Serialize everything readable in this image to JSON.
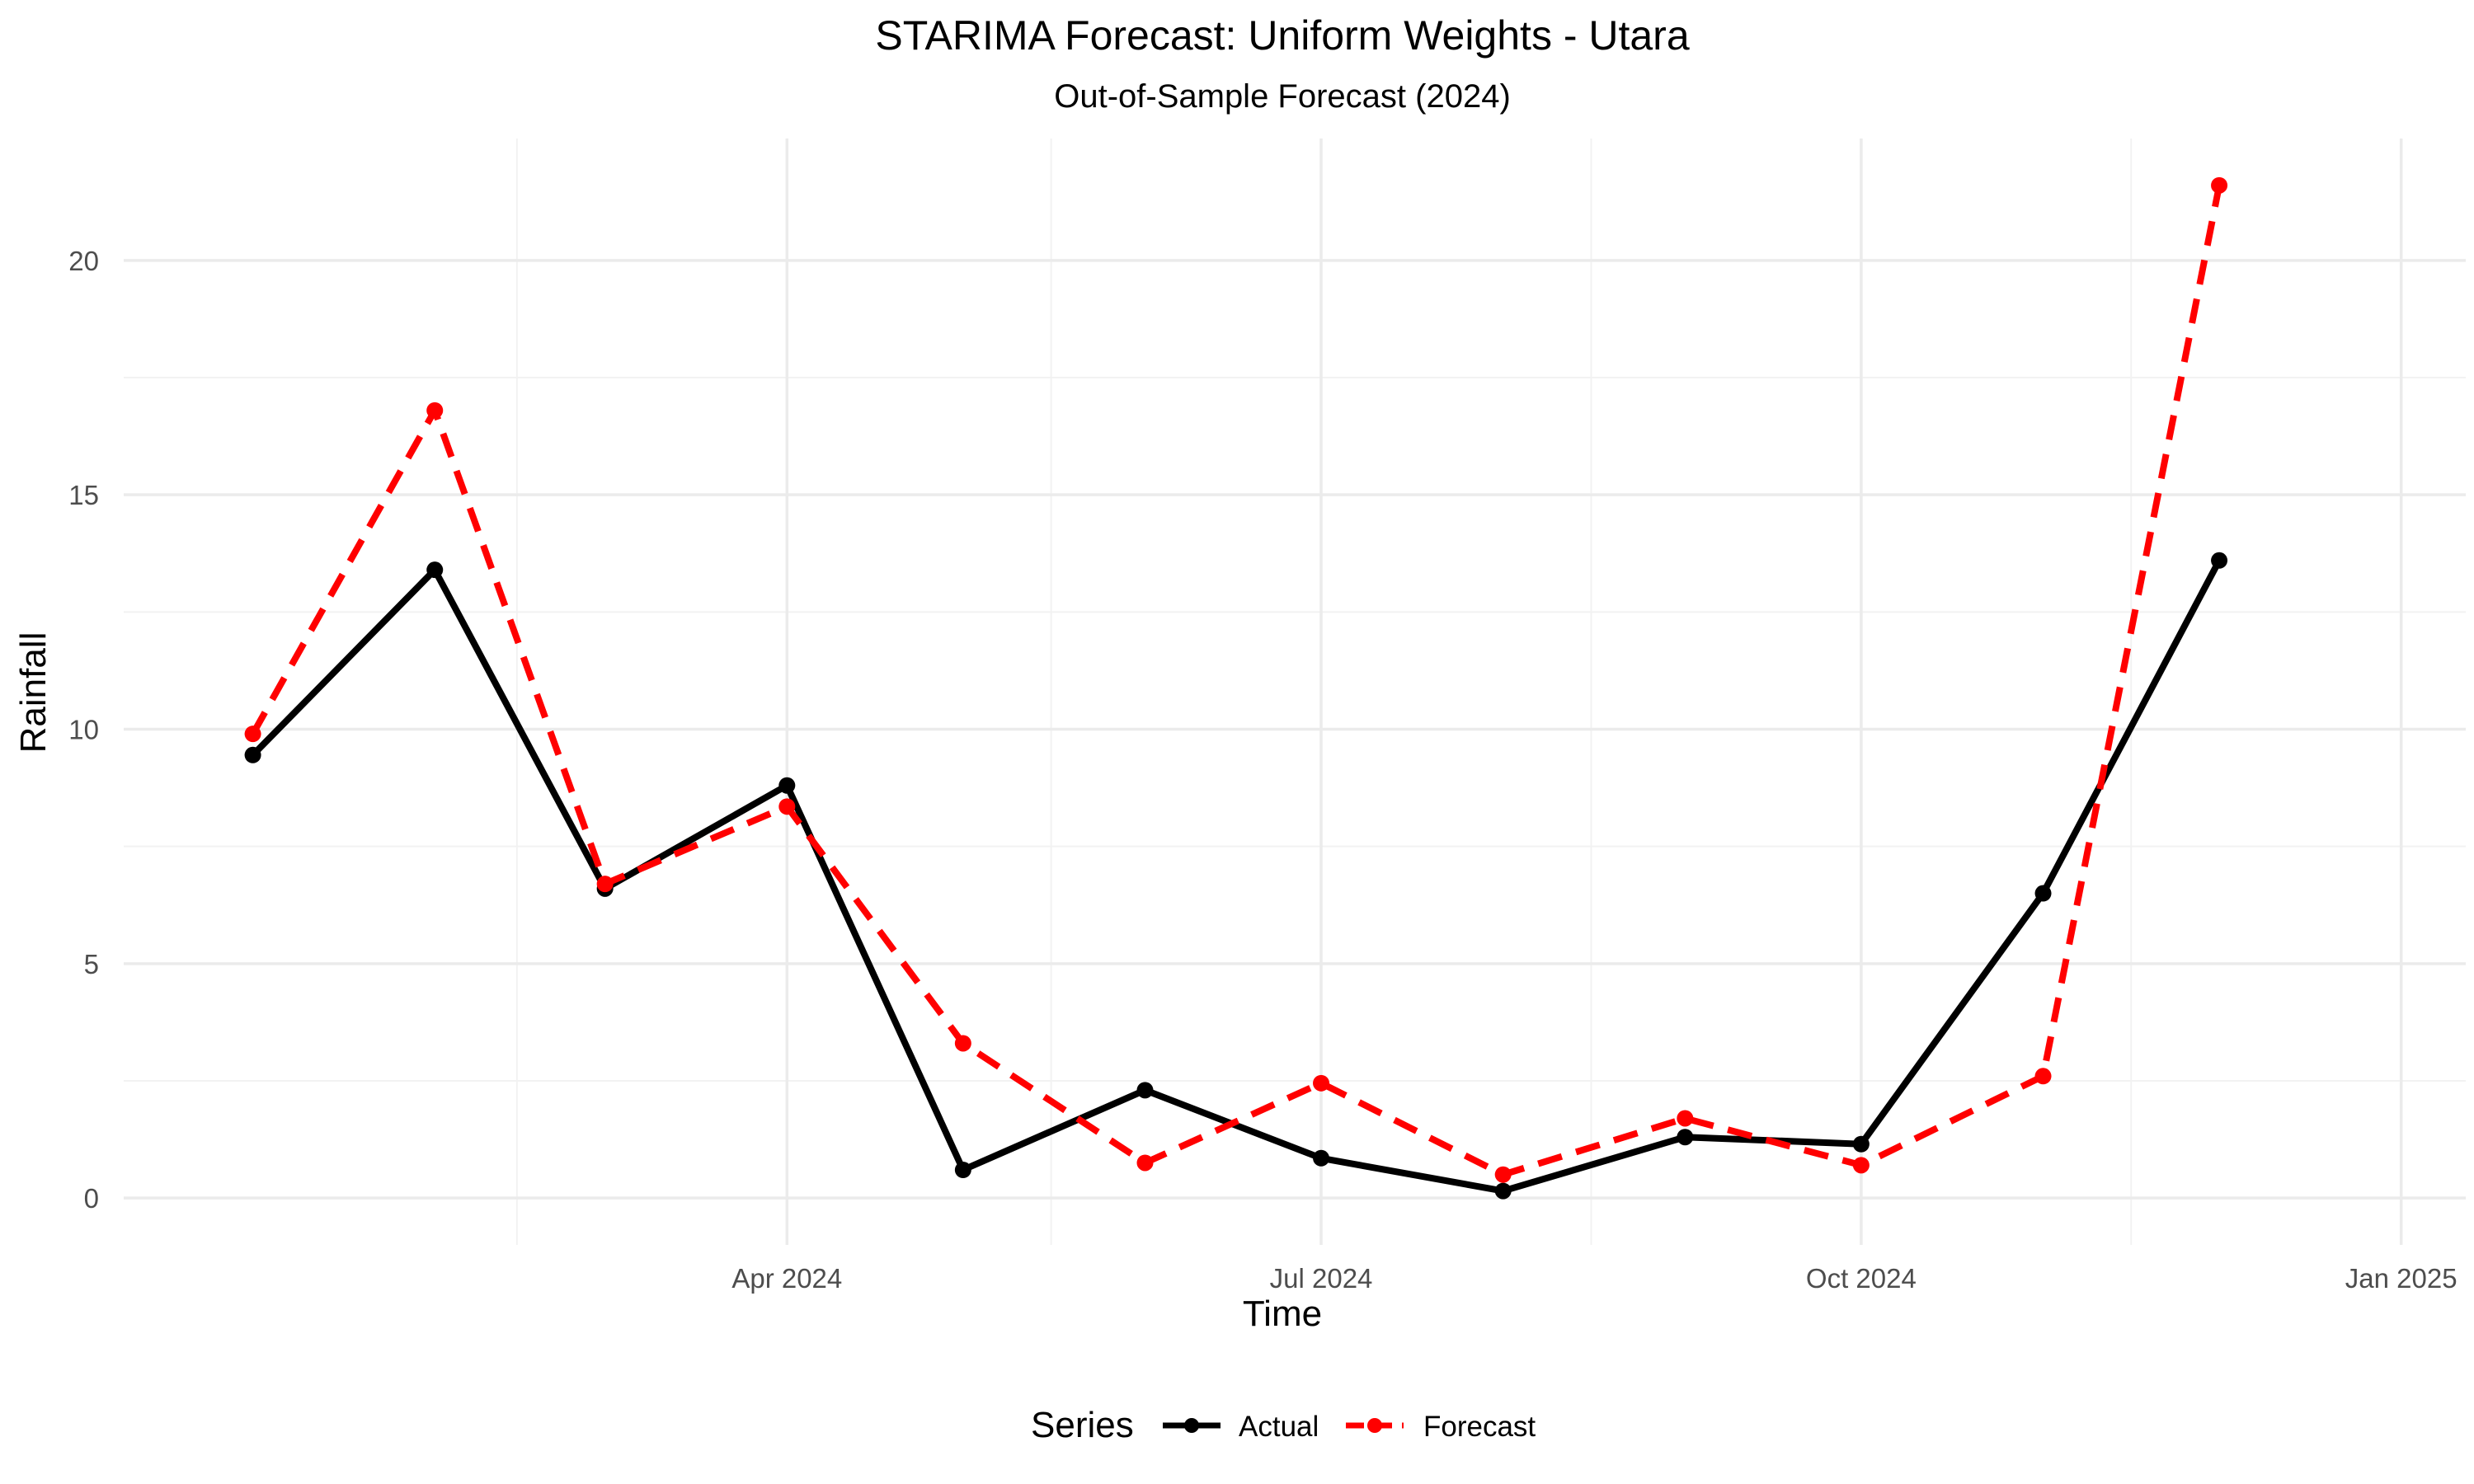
{
  "chart_data": {
    "type": "line",
    "title": "STARIMA Forecast: Uniform Weights - Utara",
    "subtitle": "Out-of-Sample Forecast (2024)",
    "xlabel": "Time",
    "ylabel": "Rainfall",
    "x": [
      "2024-01-01",
      "2024-02-01",
      "2024-03-01",
      "2024-04-01",
      "2024-05-01",
      "2024-06-01",
      "2024-07-01",
      "2024-08-01",
      "2024-09-01",
      "2024-10-01",
      "2024-11-01",
      "2024-12-01"
    ],
    "xlim": [
      "2023-12-10",
      "2025-01-12"
    ],
    "ylim": [
      -1.0,
      22.6
    ],
    "x_ticks": [
      {
        "date": "2024-04-01",
        "label": "Apr 2024"
      },
      {
        "date": "2024-07-01",
        "label": "Jul 2024"
      },
      {
        "date": "2024-10-01",
        "label": "Oct 2024"
      },
      {
        "date": "2025-01-01",
        "label": "Jan 2025"
      }
    ],
    "x_minor_ticks": [
      "2024-02-15",
      "2024-05-16",
      "2024-08-16",
      "2024-11-16"
    ],
    "y_ticks": [
      0,
      5,
      10,
      15,
      20
    ],
    "y_minor_ticks": [
      2.5,
      7.5,
      12.5,
      17.5
    ],
    "grid": true,
    "legend_position": "bottom",
    "legend_title": "Series",
    "series": [
      {
        "name": "Actual",
        "color": "#000000",
        "style": "solid",
        "values": [
          9.45,
          13.4,
          6.6,
          8.8,
          0.6,
          2.3,
          0.85,
          0.15,
          1.3,
          1.15,
          6.5,
          13.6
        ]
      },
      {
        "name": "Forecast",
        "color": "#ff0000",
        "style": "dashed",
        "values": [
          9.9,
          16.8,
          6.7,
          8.35,
          3.3,
          0.75,
          2.45,
          0.5,
          1.7,
          0.7,
          2.6,
          21.6
        ]
      }
    ]
  }
}
